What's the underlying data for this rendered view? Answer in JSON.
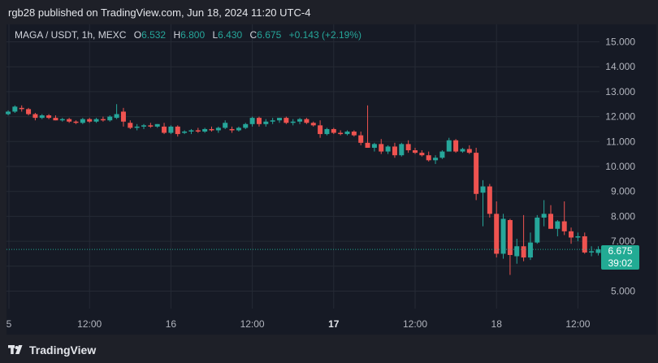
{
  "header": {
    "published": "rgb28 published on TradingView.com, Jun 18, 2024 11:20 UTC-4"
  },
  "legend": {
    "symbol": "MAGA / USDT, 1h, MEXC",
    "o_label": "O",
    "o_value": "6.532",
    "h_label": "H",
    "h_value": "6.800",
    "l_label": "L",
    "l_value": "6.430",
    "c_label": "C",
    "c_value": "6.675",
    "change": "+0.143 (+2.19%)"
  },
  "price_badge": {
    "price": "6.675",
    "countdown": "39:02"
  },
  "footer": {
    "brand": "TradingView"
  },
  "colors": {
    "up": "#26a69a",
    "down": "#ef5350",
    "grid": "#252a35",
    "text": "#b2b5be"
  },
  "chart_data": {
    "type": "candlestick",
    "symbol": "MAGA / USDT",
    "interval": "1h",
    "exchange": "MEXC",
    "ylim": [
      4.3,
      15.7
    ],
    "y_ticks": [
      "5.000",
      "6.000",
      "7.000",
      "8.000",
      "9.000",
      "10.000",
      "11.000",
      "12.000",
      "13.000",
      "14.000",
      "15.000"
    ],
    "x_ticks": [
      "5",
      "12:00",
      "16",
      "12:00",
      "17",
      "12:00",
      "18",
      "12:00"
    ],
    "x_tick_bold": [
      false,
      false,
      false,
      false,
      true,
      false,
      false,
      false
    ],
    "x_tick_index": [
      0,
      12,
      24,
      36,
      48,
      60,
      72,
      84
    ],
    "last_price": 6.675,
    "grid": true,
    "candles": [
      [
        12.1,
        12.25,
        12.05,
        12.2
      ],
      [
        12.2,
        12.45,
        12.15,
        12.4
      ],
      [
        12.35,
        12.45,
        12.2,
        12.3
      ],
      [
        12.3,
        12.35,
        12.05,
        12.1
      ],
      [
        12.1,
        12.15,
        11.85,
        11.95
      ],
      [
        11.95,
        12.1,
        11.9,
        12.05
      ],
      [
        12.05,
        12.1,
        11.9,
        11.95
      ],
      [
        11.95,
        12.05,
        11.85,
        11.85
      ],
      [
        11.85,
        11.95,
        11.8,
        11.9
      ],
      [
        11.9,
        11.95,
        11.75,
        11.8
      ],
      [
        11.8,
        11.85,
        11.7,
        11.75
      ],
      [
        11.75,
        11.95,
        11.7,
        11.9
      ],
      [
        11.9,
        11.95,
        11.75,
        11.8
      ],
      [
        11.8,
        11.95,
        11.75,
        11.9
      ],
      [
        11.9,
        12.0,
        11.8,
        11.85
      ],
      [
        11.85,
        12.05,
        11.8,
        12.0
      ],
      [
        11.95,
        12.5,
        11.9,
        12.1
      ],
      [
        12.2,
        12.35,
        11.6,
        11.8
      ],
      [
        11.75,
        11.85,
        11.5,
        11.55
      ],
      [
        11.55,
        11.7,
        11.45,
        11.6
      ],
      [
        11.6,
        11.7,
        11.5,
        11.65
      ],
      [
        11.65,
        11.75,
        11.55,
        11.6
      ],
      [
        11.6,
        11.7,
        11.55,
        11.7
      ],
      [
        11.6,
        11.75,
        11.3,
        11.35
      ],
      [
        11.35,
        11.65,
        11.3,
        11.6
      ],
      [
        11.6,
        11.65,
        11.2,
        11.3
      ],
      [
        11.35,
        11.45,
        11.3,
        11.4
      ],
      [
        11.4,
        11.5,
        11.3,
        11.45
      ],
      [
        11.45,
        11.55,
        11.35,
        11.4
      ],
      [
        11.4,
        11.55,
        11.35,
        11.5
      ],
      [
        11.5,
        11.6,
        11.4,
        11.45
      ],
      [
        11.45,
        11.6,
        11.35,
        11.55
      ],
      [
        11.55,
        11.85,
        11.5,
        11.75
      ],
      [
        11.5,
        11.6,
        11.35,
        11.45
      ],
      [
        11.45,
        11.6,
        11.4,
        11.55
      ],
      [
        11.55,
        11.75,
        11.5,
        11.7
      ],
      [
        11.7,
        12.0,
        11.6,
        11.95
      ],
      [
        11.95,
        12.0,
        11.6,
        11.7
      ],
      [
        11.7,
        11.9,
        11.6,
        11.8
      ],
      [
        11.8,
        11.95,
        11.7,
        11.85
      ],
      [
        11.85,
        11.95,
        11.75,
        11.95
      ],
      [
        11.95,
        12.0,
        11.7,
        11.75
      ],
      [
        11.75,
        11.9,
        11.65,
        11.8
      ],
      [
        11.8,
        11.95,
        11.7,
        11.9
      ],
      [
        11.9,
        11.95,
        11.7,
        11.75
      ],
      [
        11.75,
        11.8,
        11.6,
        11.65
      ],
      [
        11.65,
        11.85,
        11.15,
        11.3
      ],
      [
        11.3,
        11.55,
        11.25,
        11.5
      ],
      [
        11.5,
        11.55,
        11.3,
        11.35
      ],
      [
        11.35,
        11.45,
        11.25,
        11.3
      ],
      [
        11.3,
        11.45,
        11.25,
        11.4
      ],
      [
        11.4,
        11.45,
        11.2,
        11.25
      ],
      [
        11.25,
        11.4,
        10.85,
        10.95
      ],
      [
        10.95,
        12.45,
        10.75,
        10.75
      ],
      [
        10.75,
        10.95,
        10.6,
        10.9
      ],
      [
        10.9,
        11.1,
        10.5,
        10.6
      ],
      [
        10.6,
        10.85,
        10.5,
        10.8
      ],
      [
        10.8,
        10.95,
        10.35,
        10.45
      ],
      [
        10.45,
        10.95,
        10.4,
        10.9
      ],
      [
        10.9,
        11.05,
        10.55,
        10.65
      ],
      [
        10.65,
        10.75,
        10.5,
        10.55
      ],
      [
        10.55,
        10.65,
        10.4,
        10.45
      ],
      [
        10.45,
        10.6,
        10.2,
        10.25
      ],
      [
        10.25,
        10.45,
        10.1,
        10.35
      ],
      [
        10.35,
        10.65,
        10.3,
        10.6
      ],
      [
        10.6,
        11.15,
        10.6,
        11.05
      ],
      [
        11.05,
        11.1,
        10.55,
        10.6
      ],
      [
        10.6,
        10.75,
        10.55,
        10.7
      ],
      [
        10.7,
        10.85,
        10.5,
        10.55
      ],
      [
        10.55,
        10.75,
        8.65,
        8.9
      ],
      [
        8.95,
        9.45,
        7.6,
        9.2
      ],
      [
        9.2,
        9.3,
        7.95,
        8.1
      ],
      [
        8.1,
        8.6,
        6.35,
        6.5
      ],
      [
        6.5,
        8.1,
        6.3,
        7.9
      ],
      [
        7.85,
        7.9,
        5.65,
        6.45
      ],
      [
        6.4,
        7.1,
        6.1,
        6.8
      ],
      [
        6.8,
        8.05,
        6.2,
        6.35
      ],
      [
        6.35,
        7.35,
        6.25,
        6.95
      ],
      [
        6.95,
        8.05,
        6.9,
        7.95
      ],
      [
        7.95,
        8.65,
        7.6,
        8.1
      ],
      [
        8.1,
        8.45,
        7.5,
        7.5
      ],
      [
        7.5,
        7.85,
        7.2,
        7.8
      ],
      [
        7.8,
        8.6,
        7.25,
        7.4
      ],
      [
        7.4,
        7.55,
        6.9,
        7.15
      ],
      [
        7.15,
        7.35,
        7.0,
        7.2
      ],
      [
        7.2,
        7.35,
        6.5,
        6.55
      ],
      [
        6.55,
        6.8,
        6.4,
        6.6
      ],
      [
        6.532,
        6.8,
        6.43,
        6.675
      ]
    ]
  }
}
